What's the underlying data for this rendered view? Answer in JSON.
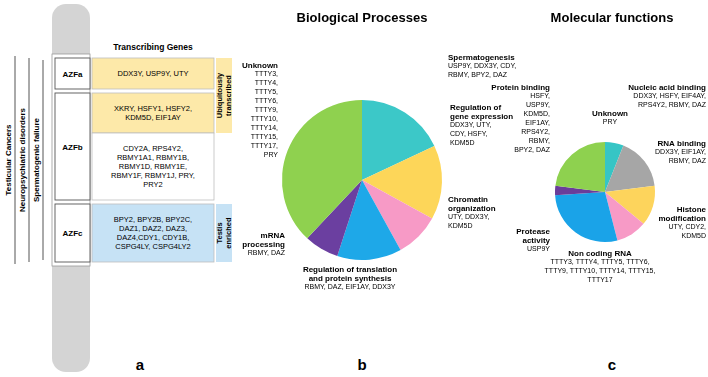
{
  "diagram": {
    "header": "Transcribing Genes",
    "regions": [
      {
        "name": "AZFa",
        "groups": [
          {
            "genes": "DDX3Y, USP9Y, UTY",
            "color": "#fde9a9"
          }
        ]
      },
      {
        "name": "AZFb",
        "groups": [
          {
            "genes": "XKRY, HSFY1, HSFY2, KDM5D, EIF1AY",
            "color": "#fde9a9"
          },
          {
            "genes": "CDY2A, RPS4Y2, RBMY1A1, RBMY1B, RBMY1D, RBMY1E, RBMY1F, RBMY1J, PRY, PRY2",
            "color": "#ffffff"
          }
        ]
      },
      {
        "name": "AZFc",
        "groups": [
          {
            "genes": "BPY2, BPY2B, BPY2C, DAZ1, DAZ2, DAZ3, DAZ4,CDY1, CDY1B, CSPG4LY, CSPG4LY2",
            "color": "#c6e2f5"
          }
        ]
      }
    ],
    "expression_labels": [
      {
        "text": "Ubiquitously transcribed",
        "color": "#fde9a9"
      },
      {
        "text": "Testis enriched",
        "color": "#c6e2f5"
      }
    ],
    "phenotypes": [
      "Testicular Cancers",
      "Neuropsychiatric disorders",
      "Spermatogenic failure"
    ]
  },
  "panel_labels": [
    "a",
    "b",
    "c"
  ],
  "chart_data": [
    {
      "type": "pie",
      "title": "Biological Processes",
      "categories": [
        "Spermatogenesis",
        "Regulation of gene expression",
        "Chromatin organization",
        "Regulation of translation and protein synthesis",
        "mRNA processing",
        "Unknown"
      ],
      "values": [
        18,
        15,
        9,
        13,
        7,
        38
      ],
      "colors": [
        "#3cc8c8",
        "#fdd659",
        "#f79ac6",
        "#1ea8e8",
        "#6b3fa0",
        "#8fd14f"
      ],
      "genes": [
        "USP9Y, DDX3Y, CDY, RBMY, BPY2, DAZ",
        "DDX3Y, UTY, CDY, HSFY, KDM5D",
        "UTY, DDX3Y, KDM5D",
        "RBMY, DAZ, EIF1AY, DDX3Y",
        "RBMY, DAZ",
        "TTTY3, TTTY4, TTTY5, TTTY6, TTTY9, TTTY10, TTTY14, TTTY15, TTTY17, PRY"
      ]
    },
    {
      "type": "pie",
      "title": "Molecular functions",
      "categories": [
        "Unknown",
        "Nucleic acid binding",
        "RNA binding",
        "Histone modification",
        "Non coding RNA",
        "Protease activity",
        "Protein binding"
      ],
      "values": [
        6,
        17,
        13,
        10,
        28,
        3,
        23
      ],
      "colors": [
        "#36c5c5",
        "#a6a6a6",
        "#fdd45c",
        "#f79ac6",
        "#1aa3e8",
        "#6a3d9a",
        "#8ed14f"
      ],
      "genes": [
        "PRY",
        "DDX3Y, HSFY, EIF4AY, RPS4Y2, RBMY, DAZ",
        "DDX3Y, EIF1AY, RBMY, DAZ",
        "UTY, CDY2, KDM5D",
        "TTTY3, TTTY4, TTTY5, TTTY6, TTTY9, TTTY10, TTTY14, TTTY15, TTTY17",
        "USP9Y",
        "HSFY, USP9Y, KDM5D, EIF1AY, RPS4Y2, RBMY, BPY2, DAZ"
      ]
    }
  ]
}
